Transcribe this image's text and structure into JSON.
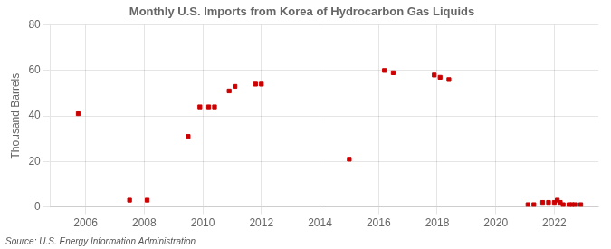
{
  "chart_data": {
    "type": "scatter",
    "title": "Monthly U.S. Imports from Korea of Hydrocarbon Gas Liquids",
    "ylabel": "Thousand Barrels",
    "source": "Source: U.S. Energy Information Administration",
    "x": [
      2005.75,
      2007.5,
      2008.1,
      2009.5,
      2009.9,
      2010.2,
      2010.4,
      2010.9,
      2011.1,
      2011.8,
      2012.0,
      2015.0,
      2016.2,
      2016.5,
      2017.9,
      2018.1,
      2018.4,
      2021.1,
      2021.3,
      2021.6,
      2021.8,
      2022.0,
      2022.1,
      2022.2,
      2022.3,
      2022.5,
      2022.6,
      2022.7,
      2022.9
    ],
    "values": [
      41,
      3,
      3,
      31,
      44,
      44,
      44,
      51,
      53,
      54,
      54,
      21,
      60,
      59,
      58,
      57,
      56,
      1,
      1,
      2,
      2,
      2,
      3,
      2,
      1,
      1,
      1,
      1,
      1
    ],
    "color": "#cc0000",
    "marker": "square",
    "xlim": [
      2004.8,
      2023.5
    ],
    "ylim": [
      0,
      80
    ],
    "xticks": [
      2006,
      2008,
      2010,
      2012,
      2014,
      2016,
      2018,
      2020,
      2022
    ],
    "yticks": [
      0,
      20,
      40,
      60,
      80
    ],
    "grid": true
  }
}
